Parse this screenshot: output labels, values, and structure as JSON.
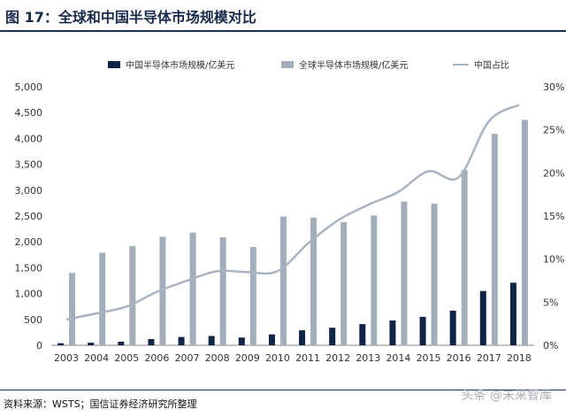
{
  "title": "图 17：全球和中国半导体市场规模对比",
  "source": "资料来源：WSTS；国信证券经济研究所整理",
  "watermark": "头条 @未来智库",
  "colors": {
    "china_bar": "#0f2447",
    "global_bar": "#a3aebb",
    "share_line": "#a9b4c2",
    "axis_text": "#333333",
    "title_rule": "#1b2f5a"
  },
  "chart_data": {
    "type": "bar",
    "categories": [
      "2003",
      "2004",
      "2005",
      "2006",
      "2007",
      "2008",
      "2009",
      "2010",
      "2011",
      "2012",
      "2013",
      "2014",
      "2015",
      "2016",
      "2017",
      "2018"
    ],
    "series": [
      {
        "name": "中国半导体市场规模/亿美元",
        "kind": "bar",
        "axis": "left",
        "values": [
          40,
          50,
          70,
          120,
          160,
          180,
          150,
          210,
          290,
          340,
          410,
          480,
          550,
          670,
          1050,
          1210
        ]
      },
      {
        "name": "全球半导体市场规模/亿美元",
        "kind": "bar",
        "axis": "left",
        "values": [
          1400,
          1790,
          1920,
          2100,
          2180,
          2090,
          1900,
          2490,
          2470,
          2380,
          2510,
          2780,
          2740,
          3390,
          4090,
          4360
        ]
      },
      {
        "name": "中国占比",
        "kind": "line",
        "axis": "right",
        "values": [
          0.03,
          0.037,
          0.045,
          0.062,
          0.075,
          0.086,
          0.085,
          0.086,
          0.118,
          0.145,
          0.163,
          0.178,
          0.202,
          0.195,
          0.26,
          0.279
        ]
      }
    ],
    "ylim": [
      0,
      5000
    ],
    "y_ticks": [
      "0",
      "500",
      "1,000",
      "1,500",
      "2,000",
      "2,500",
      "3,000",
      "3,500",
      "4,000",
      "4,500",
      "5,000"
    ],
    "y2lim": [
      0,
      0.3
    ],
    "y2_ticks": [
      "0%",
      "5%",
      "10%",
      "15%",
      "20%",
      "25%",
      "30%"
    ],
    "legend_position": "top",
    "grid": false
  }
}
